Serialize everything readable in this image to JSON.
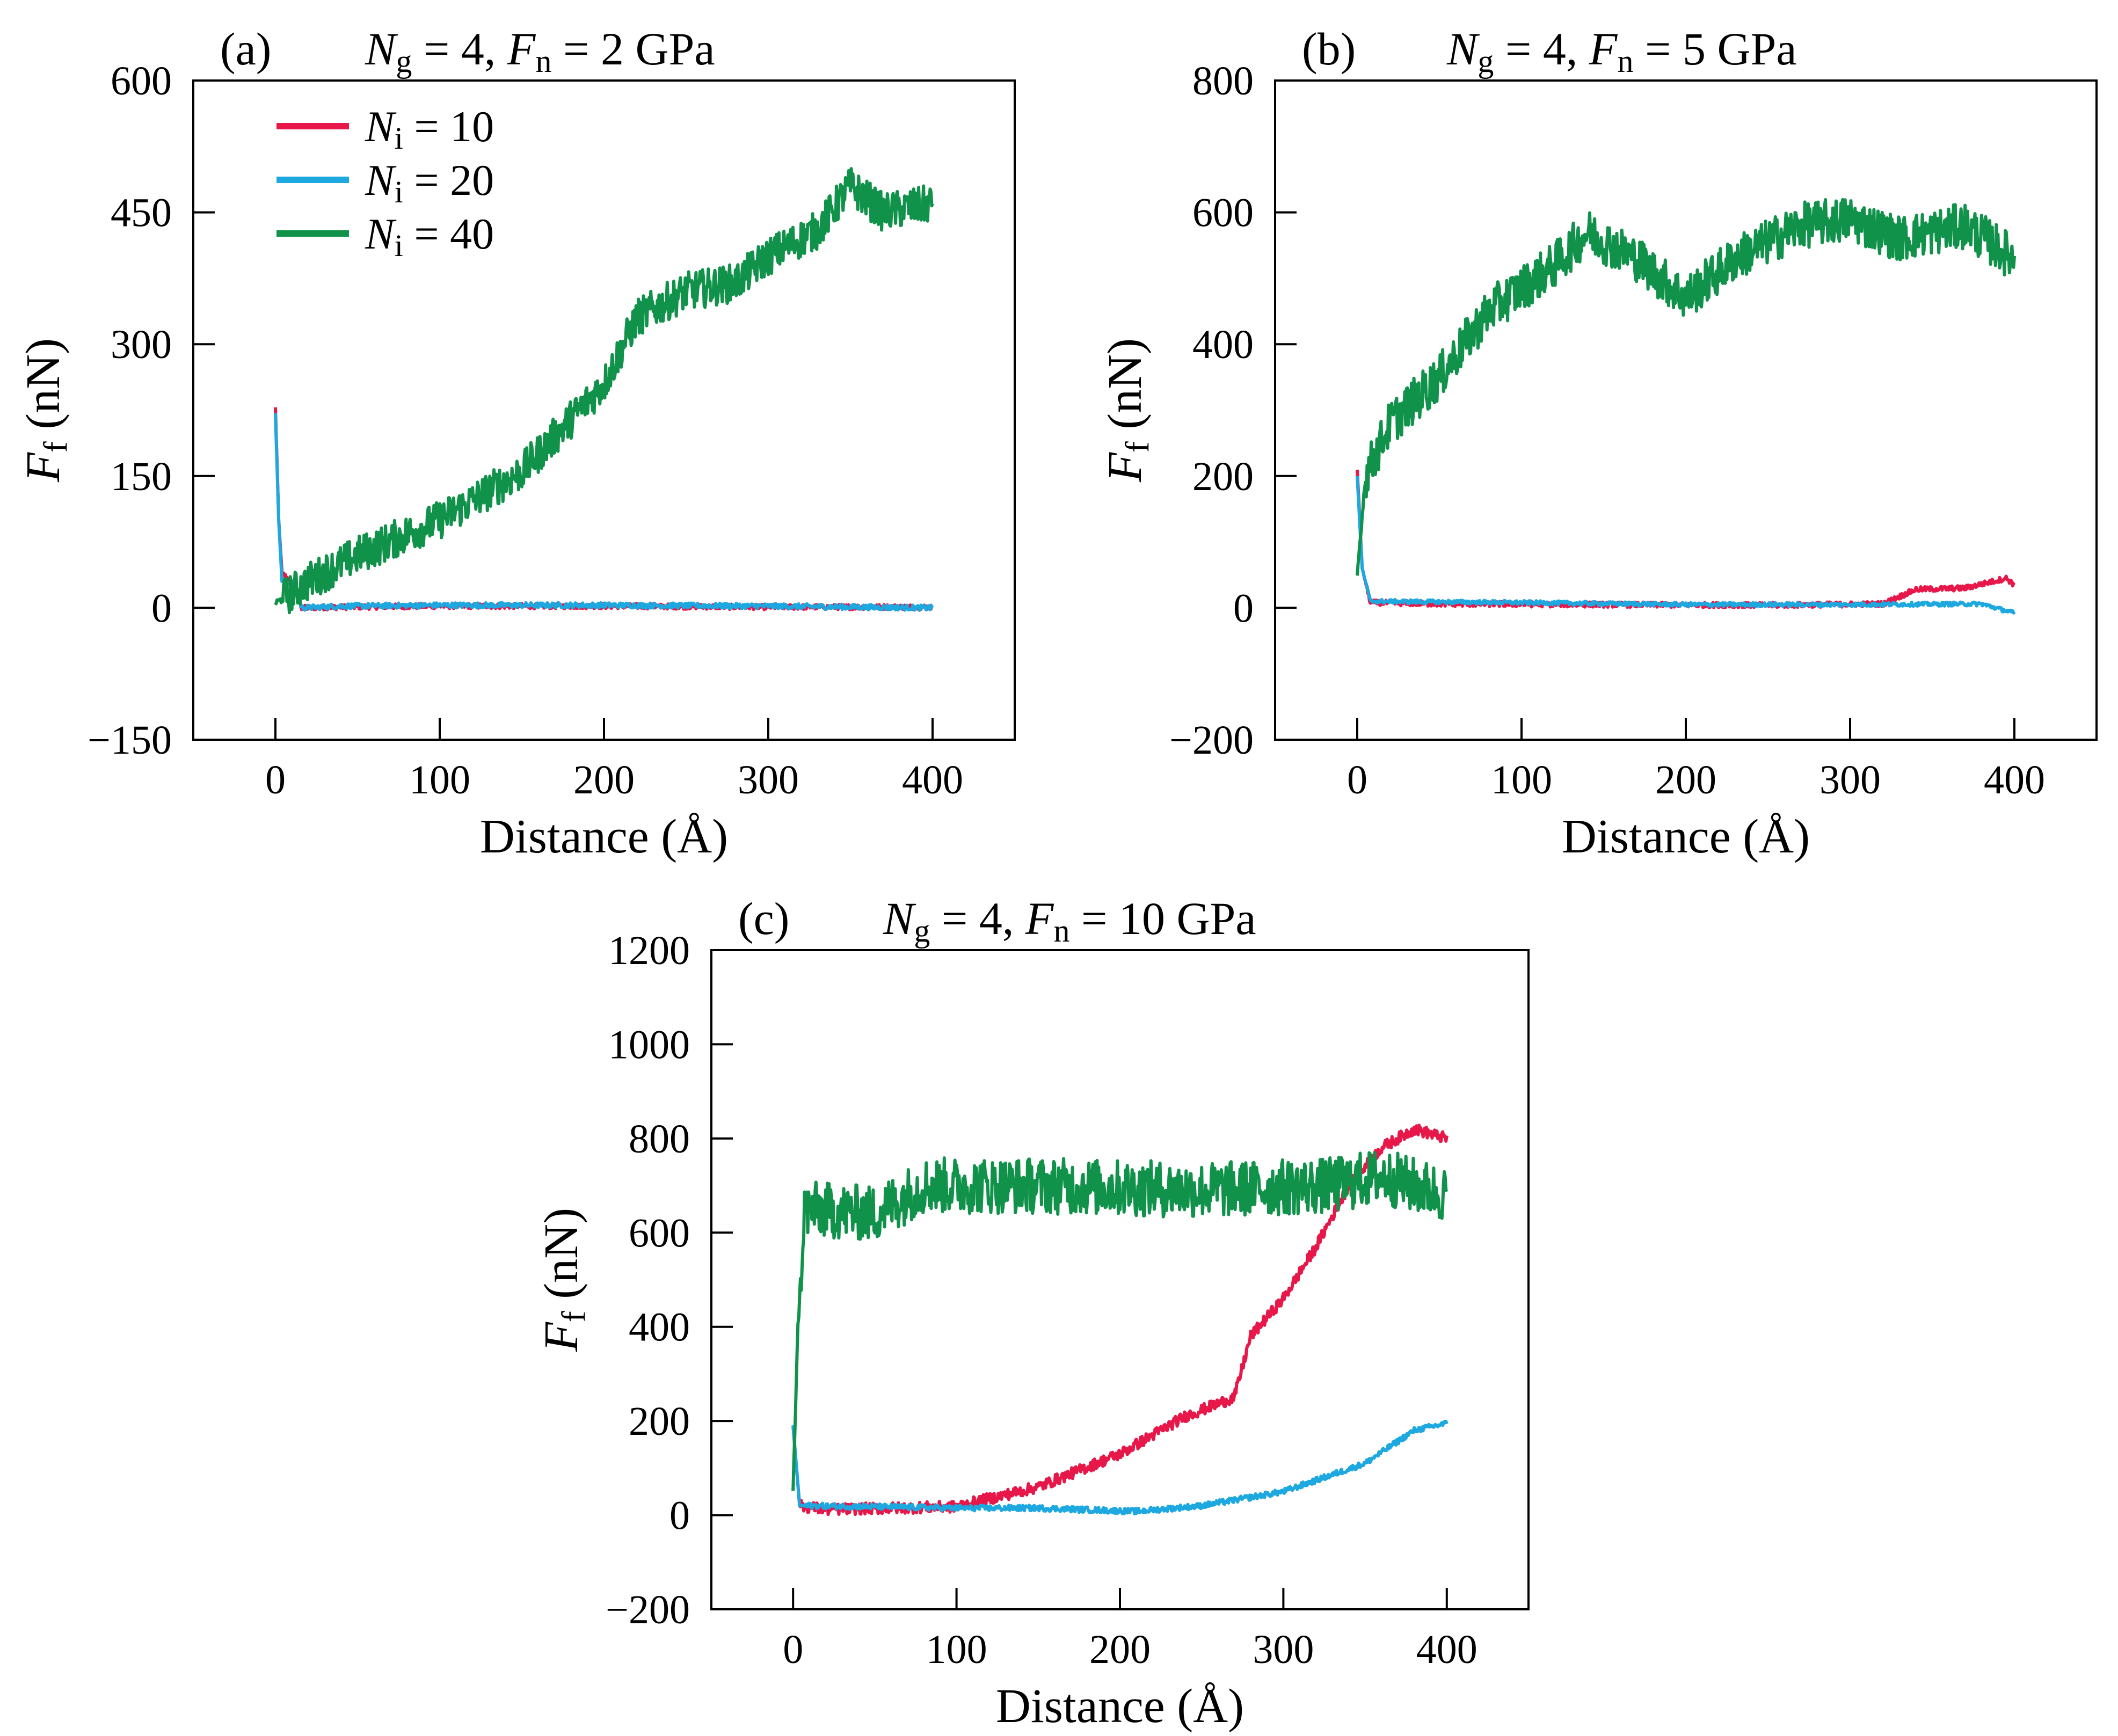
{
  "chart_data": [
    {
      "type": "line",
      "panel_label": "(a)",
      "title": {
        "main1": "N",
        "sub1": "g",
        "eq1": " = 4, ",
        "main2": "F",
        "sub2": "n",
        "eq2": " = 2 GPa"
      },
      "xlabel": "Distance (Å)",
      "ylabel": {
        "main": "F",
        "sub": "f",
        "rest": " (nN)"
      },
      "xlim": [
        -50,
        450
      ],
      "ylim": [
        -150,
        600
      ],
      "xticks": [
        0,
        100,
        200,
        300,
        400
      ],
      "yticks": [
        -150,
        0,
        150,
        300,
        450,
        600
      ],
      "legend": {
        "position": "top-left",
        "entries": [
          {
            "main": "N",
            "sub": "i",
            "eq": " = 10",
            "color": "#e8174a"
          },
          {
            "main": "N",
            "sub": "i",
            "eq": " = 20",
            "color": "#1da8e0"
          },
          {
            "main": "N",
            "sub": "i",
            "eq": " = 40",
            "color": "#10924a"
          }
        ]
      },
      "series": [
        {
          "name": "Ni = 10",
          "color": "#e8174a",
          "noise": 3,
          "points": [
            [
              0,
              228
            ],
            [
              2,
              100
            ],
            [
              4,
              40
            ],
            [
              12,
              25
            ],
            [
              16,
              0
            ],
            [
              40,
              1
            ],
            [
              100,
              2
            ],
            [
              200,
              2
            ],
            [
              300,
              1
            ],
            [
              400,
              1
            ]
          ]
        },
        {
          "name": "Ni = 20",
          "color": "#1da8e0",
          "noise": 3,
          "points": [
            [
              0,
              222
            ],
            [
              2,
              100
            ],
            [
              4,
              30
            ],
            [
              12,
              28
            ],
            [
              16,
              0
            ],
            [
              40,
              2
            ],
            [
              100,
              3
            ],
            [
              200,
              3
            ],
            [
              300,
              2
            ],
            [
              400,
              0
            ]
          ]
        },
        {
          "name": "Ni = 40",
          "color": "#10924a",
          "noise": 22,
          "points": [
            [
              0,
              5
            ],
            [
              20,
              30
            ],
            [
              50,
              60
            ],
            [
              100,
              100
            ],
            [
              150,
              155
            ],
            [
              200,
              255
            ],
            [
              220,
              330
            ],
            [
              250,
              360
            ],
            [
              280,
              370
            ],
            [
              300,
              400
            ],
            [
              330,
              430
            ],
            [
              350,
              480
            ],
            [
              370,
              450
            ],
            [
              400,
              460
            ]
          ]
        }
      ]
    },
    {
      "type": "line",
      "panel_label": "(b)",
      "title": {
        "main1": "N",
        "sub1": "g",
        "eq1": " = 4, ",
        "main2": "F",
        "sub2": "n",
        "eq2": " = 5 GPa"
      },
      "xlabel": "Distance (Å)",
      "ylabel": {
        "main": "F",
        "sub": "f",
        "rest": " (nN)"
      },
      "xlim": [
        -50,
        450
      ],
      "ylim": [
        -200,
        800
      ],
      "xticks": [
        0,
        100,
        200,
        300,
        400
      ],
      "yticks": [
        -200,
        0,
        200,
        400,
        600,
        800
      ],
      "series": [
        {
          "name": "Ni = 10",
          "color": "#e8174a",
          "noise": 4,
          "points": [
            [
              0,
              210
            ],
            [
              3,
              60
            ],
            [
              8,
              8
            ],
            [
              50,
              6
            ],
            [
              150,
              5
            ],
            [
              250,
              4
            ],
            [
              320,
              6
            ],
            [
              340,
              28
            ],
            [
              370,
              30
            ],
            [
              395,
              45
            ],
            [
              400,
              35
            ]
          ]
        },
        {
          "name": "Ni = 20",
          "color": "#1da8e0",
          "noise": 3,
          "points": [
            [
              0,
              200
            ],
            [
              3,
              60
            ],
            [
              8,
              10
            ],
            [
              100,
              8
            ],
            [
              200,
              5
            ],
            [
              300,
              5
            ],
            [
              380,
              6
            ],
            [
              400,
              -8
            ]
          ]
        },
        {
          "name": "Ni = 40",
          "color": "#10924a",
          "noise": 35,
          "points": [
            [
              0,
              50
            ],
            [
              5,
              200
            ],
            [
              20,
              280
            ],
            [
              50,
              350
            ],
            [
              80,
              450
            ],
            [
              120,
              520
            ],
            [
              140,
              570
            ],
            [
              170,
              530
            ],
            [
              200,
              470
            ],
            [
              230,
              530
            ],
            [
              270,
              580
            ],
            [
              300,
              590
            ],
            [
              330,
              560
            ],
            [
              370,
              580
            ],
            [
              400,
              530
            ]
          ]
        }
      ]
    },
    {
      "type": "line",
      "panel_label": "(c)",
      "title": {
        "main1": "N",
        "sub1": "g",
        "eq1": " = 4, ",
        "main2": "F",
        "sub2": "n",
        "eq2": " = 10 GPa"
      },
      "xlabel": "Distance (Å)",
      "ylabel": {
        "main": "F",
        "sub": "f",
        "rest": " (nN)"
      },
      "xlim": [
        -50,
        450
      ],
      "ylim": [
        -200,
        1200
      ],
      "xticks": [
        0,
        100,
        200,
        300,
        400
      ],
      "yticks": [
        -200,
        0,
        200,
        400,
        600,
        800,
        1000,
        1200
      ],
      "series": [
        {
          "name": "Ni = 10",
          "color": "#e8174a",
          "noise": 12,
          "points": [
            [
              0,
              190
            ],
            [
              4,
              20
            ],
            [
              20,
              12
            ],
            [
              100,
              18
            ],
            [
              150,
              60
            ],
            [
              200,
              130
            ],
            [
              240,
              210
            ],
            [
              270,
              250
            ],
            [
              280,
              380
            ],
            [
              300,
              460
            ],
            [
              320,
              570
            ],
            [
              340,
              700
            ],
            [
              360,
              780
            ],
            [
              380,
              820
            ],
            [
              400,
              800
            ]
          ]
        },
        {
          "name": "Ni = 20",
          "color": "#1da8e0",
          "noise": 6,
          "points": [
            [
              0,
              190
            ],
            [
              4,
              20
            ],
            [
              50,
              18
            ],
            [
              100,
              15
            ],
            [
              150,
              15
            ],
            [
              210,
              8
            ],
            [
              250,
              20
            ],
            [
              300,
              50
            ],
            [
              350,
              110
            ],
            [
              380,
              180
            ],
            [
              400,
              195
            ]
          ]
        },
        {
          "name": "Ni = 40",
          "color": "#10924a",
          "noise": 60,
          "points": [
            [
              0,
              60
            ],
            [
              3,
              400
            ],
            [
              7,
              650
            ],
            [
              50,
              640
            ],
            [
              80,
              700
            ],
            [
              150,
              700
            ],
            [
              250,
              690
            ],
            [
              330,
              700
            ],
            [
              360,
              720
            ],
            [
              400,
              680
            ]
          ]
        }
      ]
    }
  ]
}
